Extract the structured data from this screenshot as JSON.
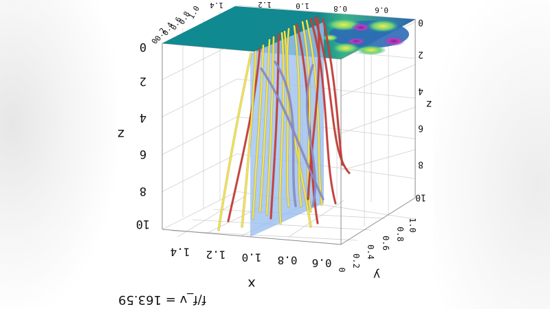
{
  "chart_data": {
    "type": "line",
    "view": "3d-perspective, image flipped",
    "axes": {
      "x": {
        "label": "x",
        "ticks": [
          "0.6",
          "0.8",
          "1.0",
          "1.2",
          "1.4"
        ],
        "range": [
          0.6,
          1.4
        ]
      },
      "y": {
        "label": "y",
        "ticks": [
          "0",
          "0.2",
          "0.4",
          "0.6",
          "0.8",
          "1.0"
        ],
        "range": [
          0,
          1.0
        ]
      },
      "z": {
        "label": "z",
        "ticks": [
          "0",
          "2",
          "4",
          "6",
          "8",
          "10"
        ],
        "range": [
          0,
          10
        ]
      },
      "z_right": {
        "ticks": [
          "0",
          "2",
          "4",
          "6",
          "8",
          "10"
        ]
      },
      "top_y": {
        "ticks": [
          "0",
          "0.2",
          "0.4",
          "0.6",
          "0.8",
          "1.0"
        ]
      },
      "top_x": {
        "ticks": [
          "0.6",
          "0.8",
          "1.0",
          "1.2",
          "1.4"
        ]
      }
    },
    "grid": true,
    "series": [
      {
        "color": "#f2e34a"
      },
      {
        "color": "#cc3d3d"
      },
      {
        "color": "#8c8cd0"
      }
    ],
    "colormap_plane_colors": [
      "#12878f",
      "#4ed07a",
      "#e9e94e",
      "#7a2bbd",
      "#c03fb5",
      "#2c55b8"
    ],
    "slice_plane_color": "#9ec2f0",
    "caption": "f/f_v = 163.59"
  }
}
